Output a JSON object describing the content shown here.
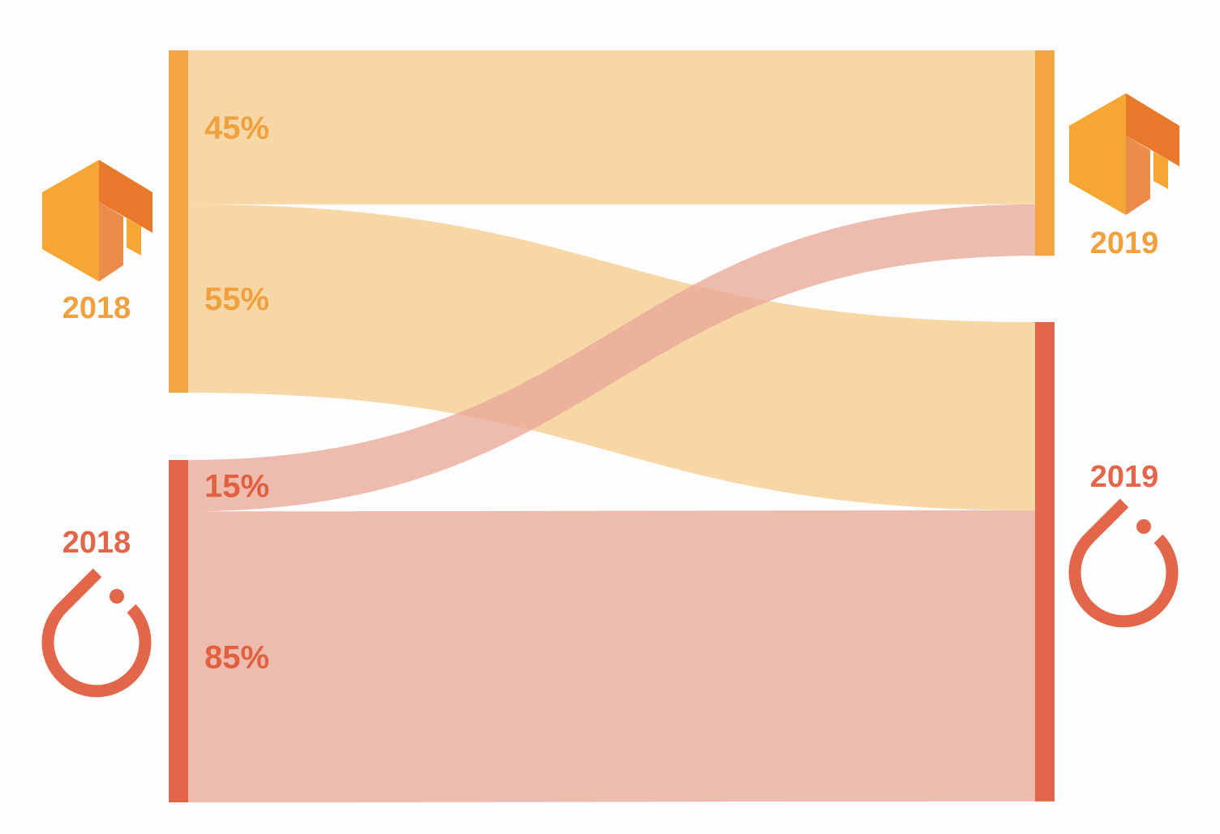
{
  "colors": {
    "tensorflow": "#f2a541",
    "tensorflow_flow": "#f7d49e",
    "tensorflow_logo_light": "#f6a635",
    "tensorflow_logo_dark": "#e8782a",
    "pytorch": "#e1664a",
    "pytorch_flow": "#e9a898",
    "background": "#fdfdfd"
  },
  "chart_data": {
    "type": "sankey",
    "title": "",
    "nodes": [
      {
        "id": "tf-2018",
        "year": "2018",
        "framework_icon": "tensorflow-logo-icon",
        "color": "#f2a541"
      },
      {
        "id": "pt-2018",
        "year": "2018",
        "framework_icon": "pytorch-logo-icon",
        "color": "#e1664a"
      },
      {
        "id": "tf-2019",
        "year": "2019",
        "framework_icon": "tensorflow-logo-icon",
        "color": "#f2a541"
      },
      {
        "id": "pt-2019",
        "year": "2019",
        "framework_icon": "pytorch-logo-icon",
        "color": "#e1664a"
      }
    ],
    "flows": [
      {
        "source": "tf-2018",
        "target": "tf-2019",
        "value": 45,
        "label": "45%"
      },
      {
        "source": "tf-2018",
        "target": "pt-2019",
        "value": 55,
        "label": "55%"
      },
      {
        "source": "pt-2018",
        "target": "tf-2019",
        "value": 15,
        "label": "15%"
      },
      {
        "source": "pt-2018",
        "target": "pt-2019",
        "value": 85,
        "label": "85%"
      }
    ]
  }
}
